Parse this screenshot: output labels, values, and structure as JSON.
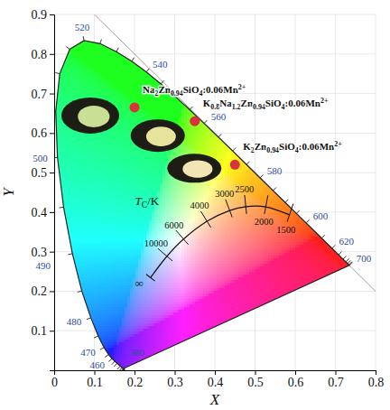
{
  "chart_data": {
    "type": "scatter",
    "xlabel": "X",
    "ylabel": "Y",
    "xlim": [
      0,
      0.8
    ],
    "ylim": [
      0,
      0.9
    ],
    "xticks": [
      0,
      0.1,
      0.2,
      0.3,
      0.4,
      0.5,
      0.6,
      0.7,
      0.8
    ],
    "yticks": [
      0.1,
      0.2,
      0.3,
      0.4,
      0.5,
      0.6,
      0.7,
      0.8,
      0.9
    ],
    "grid": true,
    "spectral_locus": {
      "wavelengths": [
        380,
        390,
        400,
        410,
        420,
        430,
        440,
        450,
        455,
        460,
        465,
        470,
        475,
        480,
        485,
        490,
        495,
        500,
        505,
        510,
        515,
        520,
        525,
        530,
        535,
        540,
        545,
        550,
        555,
        560,
        565,
        570,
        575,
        580,
        585,
        590,
        595,
        600,
        610,
        620,
        630,
        640,
        650,
        660,
        680,
        700
      ],
      "x": [
        0.1741,
        0.1738,
        0.1733,
        0.1726,
        0.1714,
        0.1689,
        0.1644,
        0.1566,
        0.151,
        0.144,
        0.1355,
        0.1241,
        0.1096,
        0.0913,
        0.0687,
        0.0454,
        0.0235,
        0.0082,
        0.0039,
        0.0139,
        0.0389,
        0.0743,
        0.1142,
        0.1547,
        0.1929,
        0.2296,
        0.2658,
        0.3016,
        0.3373,
        0.3731,
        0.4087,
        0.4441,
        0.4788,
        0.5125,
        0.5448,
        0.5752,
        0.6029,
        0.627,
        0.6658,
        0.6915,
        0.7079,
        0.719,
        0.726,
        0.73,
        0.7334,
        0.7347
      ],
      "y": [
        0.005,
        0.0049,
        0.0048,
        0.0048,
        0.0051,
        0.0069,
        0.0109,
        0.0177,
        0.0227,
        0.0297,
        0.0399,
        0.0578,
        0.0868,
        0.1327,
        0.2007,
        0.295,
        0.4127,
        0.5384,
        0.6548,
        0.7502,
        0.812,
        0.8338,
        0.8262,
        0.8059,
        0.7816,
        0.7543,
        0.7243,
        0.6923,
        0.6589,
        0.6245,
        0.5896,
        0.5547,
        0.5202,
        0.4866,
        0.4544,
        0.4242,
        0.3965,
        0.3725,
        0.334,
        0.3083,
        0.292,
        0.2809,
        0.274,
        0.27,
        0.2666,
        0.2653
      ],
      "labeled_wavelengths": [
        380,
        460,
        470,
        480,
        490,
        500,
        520,
        540,
        560,
        580,
        600,
        620,
        700
      ]
    },
    "planckian_locus": {
      "label": "TC/K",
      "cct": [
        1500,
        2000,
        2500,
        3000,
        4000,
        6000,
        10000
      ],
      "x": [
        0.5857,
        0.5267,
        0.477,
        0.4369,
        0.3805,
        0.3221,
        0.2807
      ],
      "y": [
        0.3931,
        0.4133,
        0.4137,
        0.4041,
        0.3768,
        0.3318,
        0.2884
      ],
      "infinity": {
        "label": "∞",
        "x": 0.2399,
        "y": 0.2342
      }
    },
    "series": [
      {
        "name": "Na2Zn0.94SiO4:0.06Mn2+",
        "color": "#d8323c",
        "marker": "circle",
        "x": [
          0.2
        ],
        "y": [
          0.665
        ]
      },
      {
        "name": "K0.8Na1.2Zn0.94SiO4:0.06Mn2+",
        "color": "#d8323c",
        "marker": "circle",
        "x": [
          0.35
        ],
        "y": [
          0.63
        ]
      },
      {
        "name": "K2Zn0.94SiO4:0.06Mn2+",
        "color": "#d8323c",
        "marker": "circle",
        "x": [
          0.45
        ],
        "y": [
          0.52
        ]
      }
    ]
  }
}
